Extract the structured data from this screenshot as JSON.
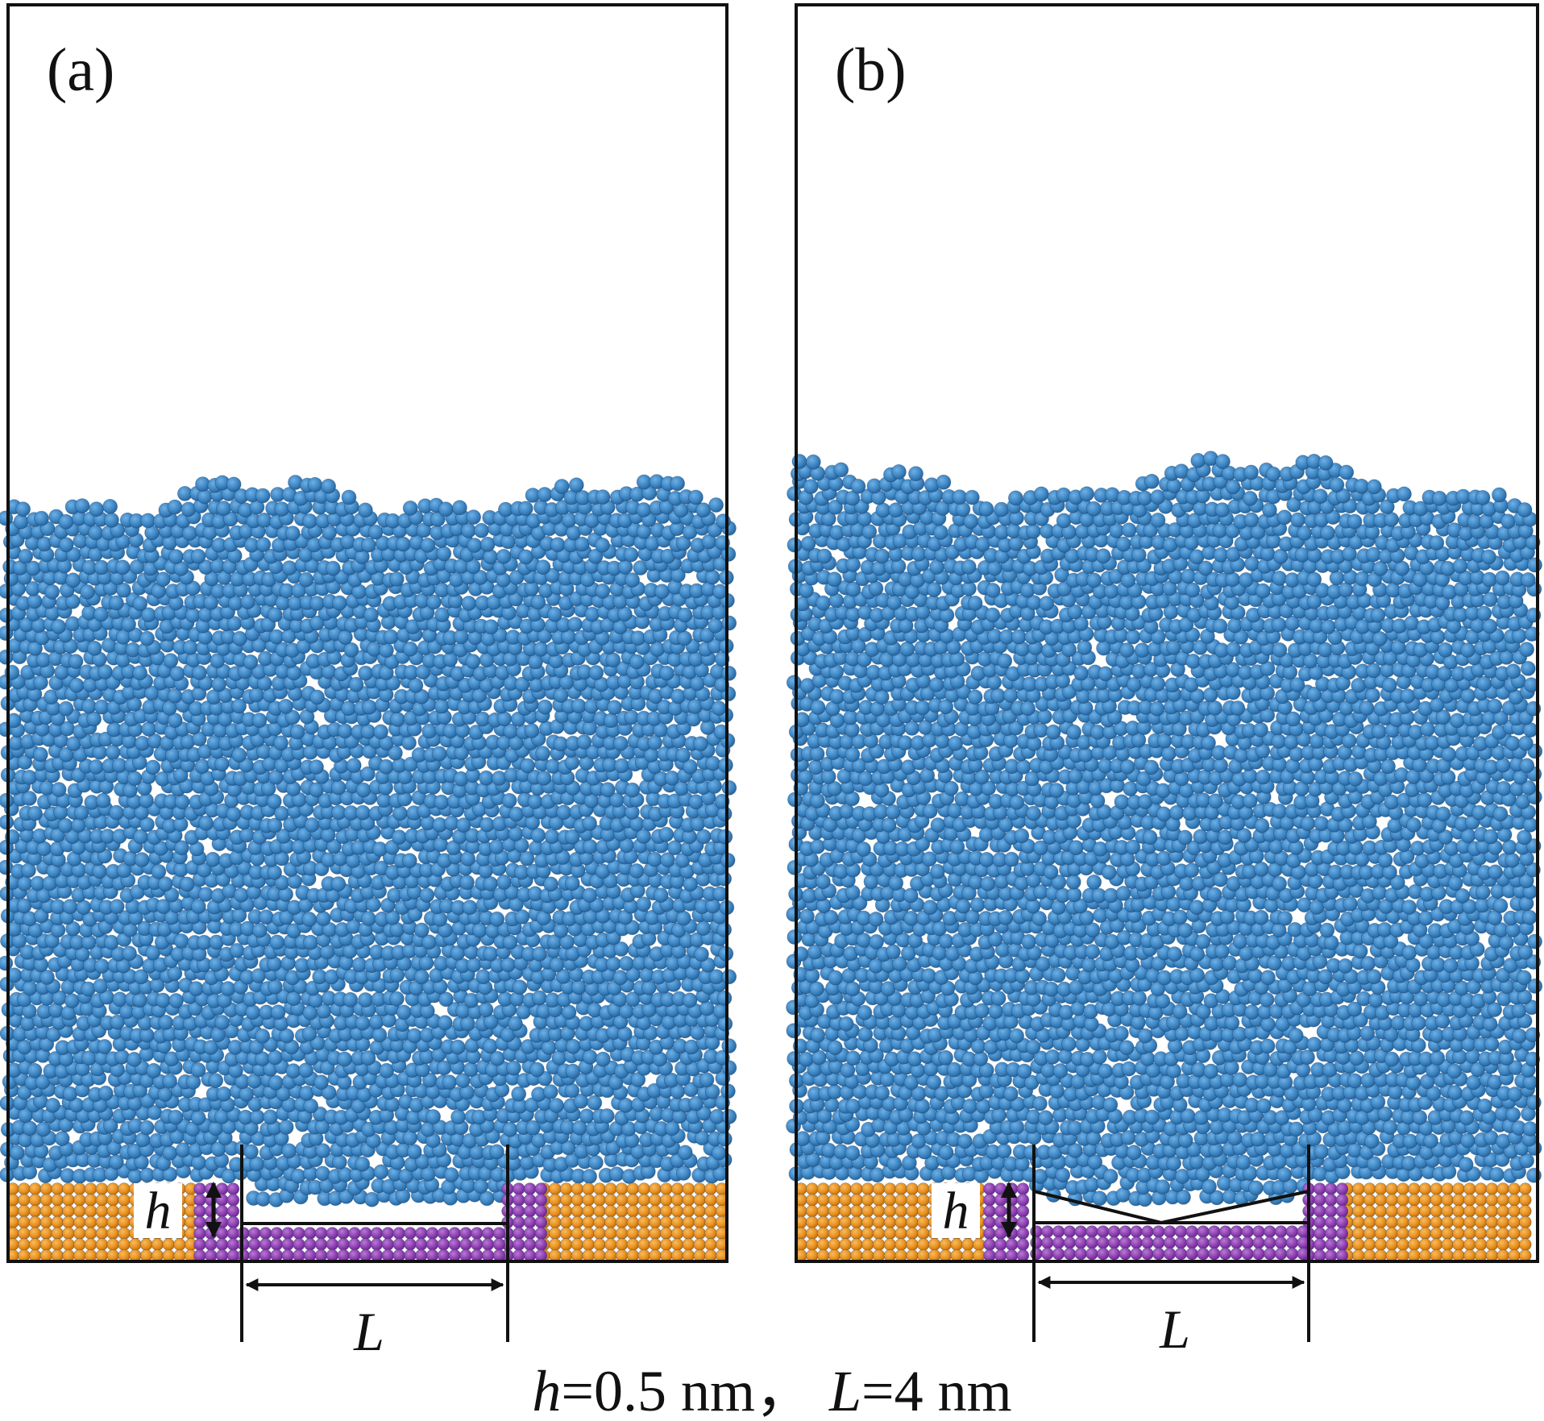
{
  "figure": {
    "panels": [
      {
        "id": "a",
        "label": "(a)",
        "groove_shape": "rectangular",
        "h_label": "h",
        "L_label": "L"
      },
      {
        "id": "b",
        "label": "(b)",
        "groove_shape": "v-shaped",
        "h_label": "h",
        "L_label": "L"
      }
    ],
    "caption": {
      "h_symbol": "h",
      "h_value": "=0.5 nm，",
      "L_symbol": "L",
      "L_value": "=4 nm"
    }
  },
  "colors": {
    "water": "#3d85c2",
    "water_dark": "#2a6aa3",
    "substrate": "#e8901e",
    "groove_wall": "#8e3fb0",
    "line": "#111111",
    "background": "#ffffff"
  }
}
